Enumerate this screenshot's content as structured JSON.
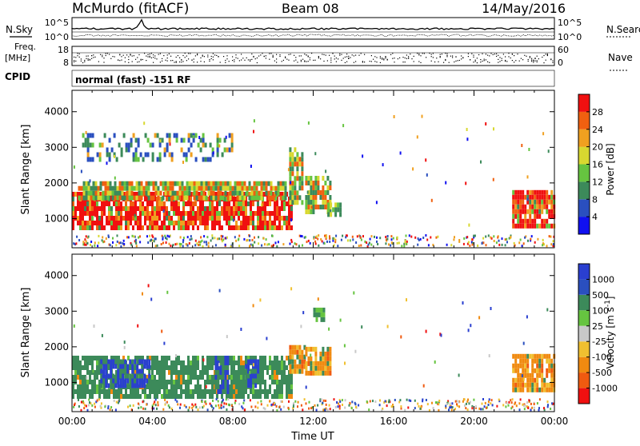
{
  "header": {
    "station": "McMurdo (fitACF)",
    "beam": "Beam 08",
    "date": "14/May/2016"
  },
  "top_panels": {
    "nsky_label": "N.Sky",
    "nsearch_label": "N.Search",
    "noise_ticks": [
      "10^5",
      "10^0"
    ],
    "freq_label_1": "Freq.",
    "freq_label_2": "[MHz]",
    "freq_ticks": [
      "18",
      "8"
    ],
    "nave_label": "Nave",
    "nave_ticks": [
      "60",
      "0"
    ],
    "cpid_label": "CPID",
    "cpid_text": "normal (fast) -151 RF"
  },
  "colors": {
    "power_scale": [
      "#1010f0",
      "#2a4fbf",
      "#3c8a5a",
      "#66c440",
      "#d8d830",
      "#f0a020",
      "#f06010",
      "#f01010"
    ],
    "velocity_scale": [
      "#f01010",
      "#f05a10",
      "#f08a10",
      "#f0c030",
      "#c8c8c8",
      "#66c440",
      "#3c8a5a",
      "#2a4fbf",
      "#2a3fd0"
    ]
  },
  "chart_data": [
    {
      "type": "heatmap",
      "panel": "power",
      "ylabel": "Slant Range [km]",
      "xlim": [
        0,
        24
      ],
      "ylim": [
        180,
        4600
      ],
      "yticks": [
        "1000",
        "2000",
        "3000",
        "4000"
      ],
      "colorbar": {
        "label": "Power [dB]",
        "tick_labels": [
          "4",
          "8",
          "12",
          "16",
          "20",
          "24",
          "28"
        ]
      },
      "regions": [
        {
          "t0": 0.0,
          "t1": 10.9,
          "r0": 700,
          "r1": 1750,
          "level": "high"
        },
        {
          "t0": 0.3,
          "t1": 10.6,
          "r0": 1550,
          "r1": 2050,
          "level": "mid"
        },
        {
          "t0": 0.5,
          "t1": 8.0,
          "r0": 2700,
          "r1": 3400,
          "level": "low"
        },
        {
          "t0": 10.8,
          "t1": 11.4,
          "r0": 1500,
          "r1": 3000,
          "level": "mid"
        },
        {
          "t0": 11.6,
          "t1": 12.8,
          "r0": 1250,
          "r1": 2200,
          "level": "mid"
        },
        {
          "t0": 12.7,
          "t1": 13.3,
          "r0": 1150,
          "r1": 1450,
          "level": "mid"
        },
        {
          "t0": 21.9,
          "t1": 24.0,
          "r0": 800,
          "r1": 1800,
          "level": "high"
        }
      ]
    },
    {
      "type": "heatmap",
      "panel": "velocity",
      "ylabel": "Slant Range [km]",
      "xlabel": "Time UT",
      "xlim": [
        0,
        24
      ],
      "ylim": [
        180,
        4600
      ],
      "xticks": [
        "00:00",
        "04:00",
        "08:00",
        "12:00",
        "16:00",
        "20:00",
        "00:00"
      ],
      "yticks": [
        "1000",
        "2000",
        "3000",
        "4000"
      ],
      "colorbar": {
        "label": "Velocity [m s",
        "label_sup": "-1",
        "label_end": "]",
        "tick_labels": [
          "1000",
          "500",
          "100",
          "25",
          "-25",
          "-100",
          "-500",
          "-1000"
        ]
      },
      "regions": [
        {
          "t0": 0.0,
          "t1": 10.9,
          "r0": 550,
          "r1": 1750,
          "level": "green"
        },
        {
          "t0": 1.4,
          "t1": 3.9,
          "r0": 900,
          "r1": 1650,
          "level": "blue"
        },
        {
          "t0": 7.1,
          "t1": 7.8,
          "r0": 700,
          "r1": 1750,
          "level": "blue"
        },
        {
          "t0": 8.6,
          "t1": 9.3,
          "r0": 900,
          "r1": 1650,
          "level": "blue"
        },
        {
          "t0": 10.8,
          "t1": 11.6,
          "r0": 1350,
          "r1": 2050,
          "level": "orange"
        },
        {
          "t0": 11.6,
          "t1": 12.8,
          "r0": 1200,
          "r1": 2000,
          "level": "orange"
        },
        {
          "t0": 12.0,
          "t1": 12.5,
          "r0": 2750,
          "r1": 3100,
          "level": "lightgreen"
        },
        {
          "t0": 21.9,
          "t1": 24.0,
          "r0": 800,
          "r1": 1800,
          "level": "orange"
        }
      ]
    }
  ]
}
